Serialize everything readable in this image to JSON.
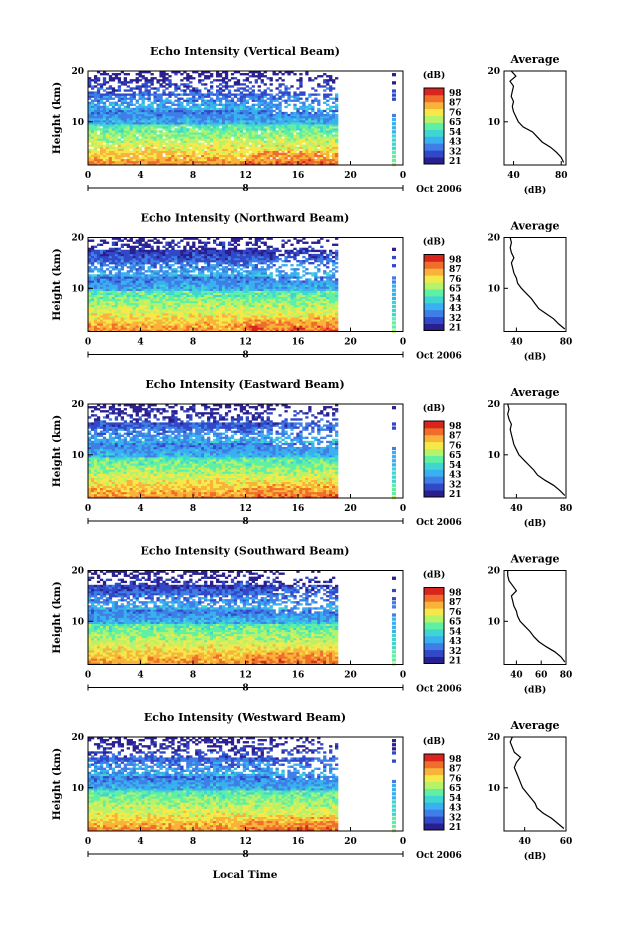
{
  "figure": {
    "bottom_xlabel": "Local Time",
    "date_label": "Oct 2006",
    "x_ticks": [
      "0",
      "4",
      "8",
      "12",
      "16",
      "20",
      "0"
    ],
    "day_label": "8"
  },
  "chart_data": [
    {
      "type": "heatmap",
      "title": "Echo Intensity (Vertical Beam)",
      "ylabel": "Height (km)",
      "xlabel": "Local Time",
      "x_range_hours": [
        0,
        24
      ],
      "data_end_hour": 19.2,
      "y_range_km": [
        1.5,
        20
      ],
      "y_ticks": [
        "20",
        "10"
      ],
      "colorbar": {
        "unit_label": "(dB)",
        "ticks": [
          "98",
          "87",
          "76",
          "65",
          "54",
          "43",
          "32",
          "21"
        ]
      },
      "profile": {
        "title": "Average",
        "xlabel": "(dB)",
        "x_ticks": [
          "40",
          "80"
        ],
        "xlim": [
          32,
          84
        ],
        "y_ticks": [
          "20",
          "10"
        ],
        "height_km": [
          2,
          3,
          4,
          5,
          6,
          7,
          8,
          9,
          10,
          11,
          12,
          13,
          14,
          15,
          16,
          17,
          18,
          19,
          20
        ],
        "mean_db": [
          82,
          80,
          76,
          71,
          64,
          60,
          56,
          48,
          44,
          42,
          40,
          39,
          40,
          38,
          39,
          40,
          37,
          42,
          38
        ]
      }
    },
    {
      "type": "heatmap",
      "title": "Echo Intensity (Northward Beam)",
      "ylabel": "Height (km)",
      "xlabel": "Local Time",
      "x_range_hours": [
        0,
        24
      ],
      "data_end_hour": 19.2,
      "y_range_km": [
        1.5,
        20
      ],
      "y_ticks": [
        "20",
        "10"
      ],
      "colorbar": {
        "unit_label": "(dB)",
        "ticks": [
          "98",
          "87",
          "76",
          "65",
          "54",
          "43",
          "32",
          "21"
        ]
      },
      "profile": {
        "title": "Average",
        "xlabel": "(dB)",
        "x_ticks": [
          "40",
          "80"
        ],
        "xlim": [
          30,
          80
        ],
        "y_ticks": [
          "20",
          "10"
        ],
        "height_km": [
          2,
          3,
          4,
          5,
          6,
          7,
          8,
          9,
          10,
          11,
          12,
          13,
          14,
          15,
          16,
          17,
          18,
          19,
          20
        ],
        "mean_db": [
          79,
          74,
          70,
          64,
          58,
          55,
          52,
          48,
          44,
          41,
          40,
          38,
          37,
          36,
          38,
          36,
          35,
          36,
          35
        ]
      }
    },
    {
      "type": "heatmap",
      "title": "Echo Intensity (Eastward Beam)",
      "ylabel": "Height (km)",
      "xlabel": "Local Time",
      "x_range_hours": [
        0,
        24
      ],
      "data_end_hour": 19.2,
      "y_range_km": [
        1.5,
        20
      ],
      "y_ticks": [
        "20",
        "10"
      ],
      "colorbar": {
        "unit_label": "(dB)",
        "ticks": [
          "98",
          "87",
          "76",
          "65",
          "54",
          "43",
          "32",
          "21"
        ]
      },
      "profile": {
        "title": "Average",
        "xlabel": "(dB)",
        "x_ticks": [
          "40",
          "80"
        ],
        "xlim": [
          30,
          80
        ],
        "y_ticks": [
          "20",
          "10"
        ],
        "height_km": [
          2,
          3,
          4,
          5,
          6,
          7,
          8,
          9,
          10,
          11,
          12,
          13,
          14,
          15,
          16,
          17,
          18,
          19,
          20
        ],
        "mean_db": [
          79,
          75,
          70,
          63,
          57,
          54,
          50,
          46,
          42,
          40,
          38,
          37,
          36,
          35,
          36,
          34,
          33,
          34,
          33
        ]
      }
    },
    {
      "type": "heatmap",
      "title": "Echo Intensity (Southward Beam)",
      "ylabel": "Height (km)",
      "xlabel": "Local Time",
      "x_range_hours": [
        0,
        24
      ],
      "data_end_hour": 19.2,
      "y_range_km": [
        1.5,
        20
      ],
      "y_ticks": [
        "20",
        "10"
      ],
      "colorbar": {
        "unit_label": "(dB)",
        "ticks": [
          "98",
          "87",
          "76",
          "65",
          "54",
          "43",
          "32",
          "21"
        ]
      },
      "profile": {
        "title": "Average",
        "xlabel": "(dB)",
        "x_ticks": [
          "40",
          "60",
          "80"
        ],
        "xlim": [
          30,
          80
        ],
        "y_ticks": [
          "20",
          "10"
        ],
        "height_km": [
          2,
          3,
          4,
          5,
          6,
          7,
          8,
          9,
          10,
          11,
          12,
          13,
          14,
          15,
          16,
          17,
          18,
          19,
          20
        ],
        "mean_db": [
          79,
          76,
          71,
          64,
          58,
          54,
          51,
          47,
          43,
          41,
          40,
          38,
          37,
          36,
          40,
          37,
          34,
          33,
          33
        ]
      }
    },
    {
      "type": "heatmap",
      "title": "Echo Intensity (Westward Beam)",
      "ylabel": "Height (km)",
      "xlabel": "Local Time",
      "x_range_hours": [
        0,
        24
      ],
      "data_end_hour": 19.2,
      "y_range_km": [
        1.5,
        20
      ],
      "y_ticks": [
        "20",
        "10"
      ],
      "colorbar": {
        "unit_label": "(dB)",
        "ticks": [
          "98",
          "87",
          "76",
          "65",
          "54",
          "43",
          "32",
          "21"
        ]
      },
      "profile": {
        "title": "Average",
        "xlabel": "(dB)",
        "x_ticks": [
          "40",
          "60"
        ],
        "xlim": [
          30,
          60
        ],
        "y_ticks": [
          "20",
          "10"
        ],
        "height_km": [
          2,
          3,
          4,
          5,
          6,
          7,
          8,
          9,
          10,
          11,
          12,
          13,
          14,
          15,
          16,
          17,
          18,
          19,
          20
        ],
        "mean_db": [
          59,
          56,
          53,
          49,
          46,
          45,
          43,
          41,
          39,
          38,
          37,
          36,
          35,
          36,
          38,
          35,
          34,
          33,
          34
        ]
      }
    }
  ]
}
